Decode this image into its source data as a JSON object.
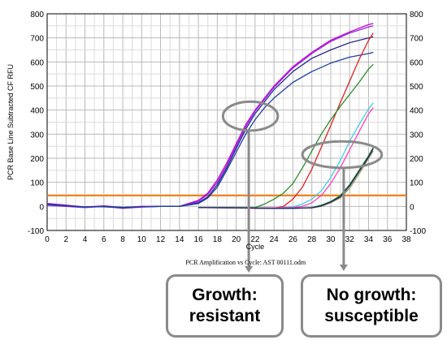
{
  "chart_data": {
    "type": "line",
    "title": "",
    "xlabel": "Cycle",
    "ylabel": "PCR Base Line Subtracted CF RFU",
    "footer": "PCR Amplification vs Cycle: AST 00111.odm",
    "xlim": [
      0,
      38
    ],
    "ylim": [
      -100,
      800
    ],
    "x_ticks": [
      "0",
      "2",
      "4",
      "6",
      "8",
      "10",
      "12",
      "14",
      "16",
      "18",
      "20",
      "22",
      "24",
      "26",
      "28",
      "30",
      "32",
      "34",
      "36",
      "38"
    ],
    "y_ticks": [
      "-100",
      "0",
      "100",
      "200",
      "300",
      "400",
      "500",
      "600",
      "700",
      "800"
    ],
    "y_ticks_right": [
      "-100",
      "0",
      "100",
      "200",
      "300",
      "400",
      "500",
      "600",
      "700",
      "800"
    ],
    "grid": true,
    "threshold": {
      "value": 45,
      "color": "#ff8000"
    },
    "series": [
      {
        "color": "#cc00cc",
        "points": [
          [
            0,
            12
          ],
          [
            2,
            5
          ],
          [
            4,
            -3
          ],
          [
            6,
            2
          ],
          [
            8,
            -5
          ],
          [
            10,
            0
          ],
          [
            12,
            0
          ],
          [
            14,
            0
          ],
          [
            16,
            25
          ],
          [
            17,
            55
          ],
          [
            18,
            110
          ],
          [
            19,
            180
          ],
          [
            20,
            260
          ],
          [
            21,
            340
          ],
          [
            22,
            400
          ],
          [
            23,
            450
          ],
          [
            24,
            500
          ],
          [
            26,
            580
          ],
          [
            28,
            640
          ],
          [
            30,
            690
          ],
          [
            32,
            725
          ],
          [
            34,
            755
          ],
          [
            34.5,
            760
          ]
        ]
      },
      {
        "color": "#8a2be2",
        "points": [
          [
            0,
            5
          ],
          [
            2,
            0
          ],
          [
            4,
            -5
          ],
          [
            6,
            0
          ],
          [
            8,
            -8
          ],
          [
            10,
            -3
          ],
          [
            12,
            0
          ],
          [
            14,
            0
          ],
          [
            16,
            20
          ],
          [
            17,
            50
          ],
          [
            18,
            100
          ],
          [
            19,
            170
          ],
          [
            20,
            250
          ],
          [
            21,
            330
          ],
          [
            22,
            395
          ],
          [
            23,
            445
          ],
          [
            24,
            495
          ],
          [
            26,
            575
          ],
          [
            28,
            635
          ],
          [
            30,
            685
          ],
          [
            32,
            720
          ],
          [
            34,
            745
          ],
          [
            34.5,
            750
          ]
        ]
      },
      {
        "color": "#2a2a8c",
        "points": [
          [
            0,
            10
          ],
          [
            2,
            3
          ],
          [
            4,
            -2
          ],
          [
            6,
            -2
          ],
          [
            8,
            -6
          ],
          [
            10,
            -2
          ],
          [
            12,
            0
          ],
          [
            14,
            0
          ],
          [
            16,
            15
          ],
          [
            17,
            40
          ],
          [
            18,
            90
          ],
          [
            19,
            160
          ],
          [
            20,
            240
          ],
          [
            21,
            320
          ],
          [
            22,
            385
          ],
          [
            23,
            435
          ],
          [
            24,
            485
          ],
          [
            26,
            560
          ],
          [
            28,
            615
          ],
          [
            30,
            650
          ],
          [
            32,
            680
          ],
          [
            34,
            700
          ],
          [
            34.5,
            705
          ]
        ]
      },
      {
        "color": "#1e3fa0",
        "points": [
          [
            0,
            8
          ],
          [
            2,
            2
          ],
          [
            4,
            -3
          ],
          [
            6,
            0
          ],
          [
            8,
            -4
          ],
          [
            10,
            -2
          ],
          [
            12,
            0
          ],
          [
            14,
            0
          ],
          [
            16,
            12
          ],
          [
            17,
            35
          ],
          [
            18,
            80
          ],
          [
            19,
            150
          ],
          [
            20,
            225
          ],
          [
            21,
            300
          ],
          [
            22,
            360
          ],
          [
            23,
            410
          ],
          [
            24,
            450
          ],
          [
            26,
            515
          ],
          [
            28,
            560
          ],
          [
            30,
            595
          ],
          [
            32,
            620
          ],
          [
            34,
            635
          ],
          [
            34.5,
            640
          ]
        ]
      },
      {
        "color": "#e02020",
        "points": [
          [
            16,
            -5
          ],
          [
            18,
            -5
          ],
          [
            20,
            -6
          ],
          [
            22,
            -8
          ],
          [
            24,
            -8
          ],
          [
            25,
            0
          ],
          [
            26,
            30
          ],
          [
            27,
            80
          ],
          [
            28,
            155
          ],
          [
            29,
            245
          ],
          [
            30,
            335
          ],
          [
            31,
            430
          ],
          [
            32,
            520
          ],
          [
            33,
            610
          ],
          [
            34,
            690
          ],
          [
            34.5,
            720
          ]
        ]
      },
      {
        "color": "#2a8c2a",
        "points": [
          [
            16,
            -5
          ],
          [
            18,
            -5
          ],
          [
            20,
            -5
          ],
          [
            22,
            -5
          ],
          [
            23,
            10
          ],
          [
            24,
            30
          ],
          [
            25,
            55
          ],
          [
            26,
            95
          ],
          [
            27,
            160
          ],
          [
            28,
            230
          ],
          [
            29,
            300
          ],
          [
            30,
            360
          ],
          [
            31,
            415
          ],
          [
            32,
            465
          ],
          [
            33,
            515
          ],
          [
            34,
            570
          ],
          [
            34.5,
            590
          ]
        ]
      },
      {
        "color": "#40d0e0",
        "points": [
          [
            16,
            -5
          ],
          [
            20,
            -6
          ],
          [
            24,
            -6
          ],
          [
            26,
            -2
          ],
          [
            27,
            10
          ],
          [
            28,
            30
          ],
          [
            29,
            65
          ],
          [
            30,
            120
          ],
          [
            31,
            190
          ],
          [
            32,
            270
          ],
          [
            33,
            340
          ],
          [
            34,
            405
          ],
          [
            34.5,
            430
          ]
        ]
      },
      {
        "color": "#ff40c0",
        "points": [
          [
            16,
            -5
          ],
          [
            20,
            -6
          ],
          [
            24,
            -6
          ],
          [
            26,
            -5
          ],
          [
            27,
            0
          ],
          [
            28,
            15
          ],
          [
            29,
            45
          ],
          [
            30,
            95
          ],
          [
            31,
            160
          ],
          [
            32,
            235
          ],
          [
            33,
            310
          ],
          [
            34,
            385
          ],
          [
            34.5,
            410
          ]
        ]
      },
      {
        "color": "#1a8c1a",
        "points": [
          [
            16,
            -5
          ],
          [
            20,
            -6
          ],
          [
            24,
            -8
          ],
          [
            26,
            -8
          ],
          [
            28,
            -5
          ],
          [
            29,
            5
          ],
          [
            30,
            20
          ],
          [
            31,
            45
          ],
          [
            32,
            90
          ],
          [
            33,
            150
          ],
          [
            34,
            210
          ],
          [
            34.5,
            245
          ]
        ]
      },
      {
        "color": "#9a9a40",
        "points": [
          [
            16,
            -5
          ],
          [
            20,
            -6
          ],
          [
            24,
            -8
          ],
          [
            26,
            -8
          ],
          [
            28,
            -6
          ],
          [
            29,
            0
          ],
          [
            30,
            15
          ],
          [
            31,
            35
          ],
          [
            32,
            75
          ],
          [
            33,
            135
          ],
          [
            34,
            200
          ],
          [
            34.5,
            230
          ]
        ]
      },
      {
        "color": "#202080",
        "points": [
          [
            16,
            -5
          ],
          [
            20,
            -6
          ],
          [
            24,
            -8
          ],
          [
            26,
            -8
          ],
          [
            28,
            -6
          ],
          [
            29,
            2
          ],
          [
            30,
            18
          ],
          [
            31,
            40
          ],
          [
            32,
            85
          ],
          [
            33,
            145
          ],
          [
            34,
            205
          ],
          [
            34.5,
            240
          ]
        ]
      }
    ]
  },
  "annotations": {
    "ellipse_left": {
      "center": [
        21.5,
        375
      ],
      "rx_cycles": 2.9,
      "ry_rfu": 60
    },
    "ellipse_right": {
      "center": [
        31.2,
        215
      ],
      "rx_cycles": 4.2,
      "ry_rfu": 55
    }
  },
  "callouts": {
    "left": {
      "line1": "Growth:",
      "line2": "resistant"
    },
    "right": {
      "line1": "No growth:",
      "line2": "susceptible"
    }
  }
}
